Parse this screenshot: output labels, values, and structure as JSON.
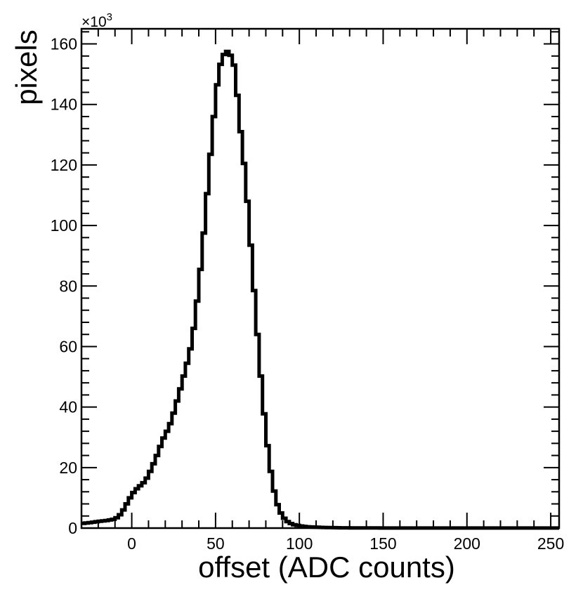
{
  "chart_data": {
    "type": "line",
    "style": "step-histogram",
    "title": "",
    "xlabel": "offset (ADC counts)",
    "ylabel": "pixels",
    "y_multiplier_label": {
      "base": "×10",
      "exp": "3"
    },
    "xlim": [
      -30,
      255
    ],
    "ylim": [
      0,
      165
    ],
    "y_unit": "thousands of pixels",
    "x_ticks": [
      0,
      50,
      100,
      150,
      200,
      250
    ],
    "x_tick_labels": [
      "0",
      "50",
      "100",
      "150",
      "200",
      "250"
    ],
    "y_ticks": [
      0,
      20,
      40,
      60,
      80,
      100,
      120,
      140,
      160
    ],
    "y_tick_labels": [
      "0",
      "20",
      "40",
      "60",
      "80",
      "100",
      "120",
      "140",
      "160"
    ],
    "grid": false,
    "line_color": "#000000",
    "series": [
      {
        "x": [
          -30,
          -25,
          -20,
          -15,
          -10,
          -8,
          -6,
          -4,
          -2,
          0,
          2,
          4,
          6,
          8,
          10,
          12,
          14,
          16,
          18,
          20,
          22,
          24,
          26,
          28,
          30,
          32,
          34,
          36,
          38,
          40,
          42,
          44,
          46,
          48,
          50,
          52,
          54,
          56,
          58,
          60,
          61,
          62,
          63,
          64,
          66,
          68,
          70,
          72,
          74,
          76,
          78,
          80,
          82,
          84,
          86,
          88,
          90,
          92,
          94,
          96,
          98,
          100,
          102,
          104,
          106,
          110,
          115,
          120,
          125,
          130,
          140,
          150,
          200,
          255
        ],
        "y": [
          1.5,
          1.8,
          2.2,
          2.5,
          3.0,
          3.8,
          5.0,
          7.0,
          9.0,
          11.0,
          12.5,
          13.5,
          14.5,
          15.5,
          17.5,
          20.0,
          22.5,
          25.5,
          28.5,
          31.0,
          33.0,
          36.0,
          40.0,
          44.0,
          48.0,
          52.5,
          56.5,
          62.0,
          70.0,
          80.0,
          91.0,
          104.0,
          117.0,
          130.0,
          142.0,
          151.0,
          155.5,
          157.5,
          157.5,
          155.0,
          153.0,
          149.0,
          143.0,
          136.0,
          126.0,
          115.0,
          101.0,
          86.0,
          71.0,
          57.0,
          43.5,
          32.0,
          22.5,
          15.0,
          9.5,
          6.0,
          4.0,
          2.5,
          1.8,
          1.2,
          1.0,
          0.8,
          0.6,
          0.5,
          0.4,
          0.3,
          0.2,
          0.15,
          0.1,
          0.08,
          0.05,
          0.03,
          0.02,
          0.02
        ]
      }
    ]
  }
}
